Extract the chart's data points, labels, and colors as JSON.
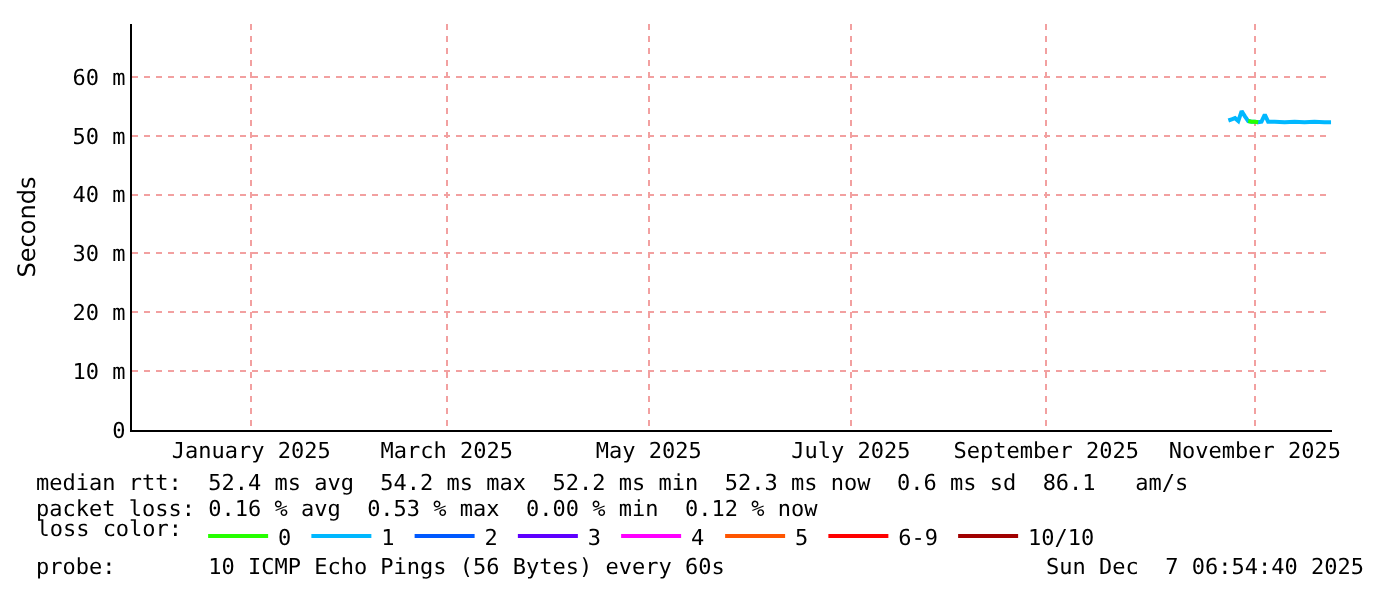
{
  "chart_data": {
    "type": "line",
    "ylabel": "Seconds",
    "xlim": [
      "2024-12-10",
      "2025-12-07T06:54"
    ],
    "xticks": [
      {
        "value": "2025-01-15",
        "label": "January 2025"
      },
      {
        "value": "2025-03-15",
        "label": "March 2025"
      },
      {
        "value": "2025-05-15",
        "label": "May 2025"
      },
      {
        "value": "2025-07-15",
        "label": "July 2025"
      },
      {
        "value": "2025-09-12",
        "label": "September 2025"
      },
      {
        "value": "2025-11-14",
        "label": "November 2025"
      }
    ],
    "ylim": [
      0,
      69
    ],
    "yticks": [
      0,
      {
        "value": 10,
        "label": "10 m"
      },
      {
        "value": 20,
        "label": "20 m"
      },
      {
        "value": 30,
        "label": "30 m"
      },
      {
        "value": 40,
        "label": "40 m"
      },
      {
        "value": 50,
        "label": "50 m"
      },
      {
        "value": 60,
        "label": "60 m"
      }
    ],
    "grid": true,
    "legend": "bottom",
    "legend_title": "loss color:",
    "marker": "none",
    "line_style": "solid",
    "series": [
      {
        "name": "0",
        "color": "#26ff00",
        "x": [
          "2025-11-12",
          "2025-11-13",
          "2025-11-14",
          "2025-11-15"
        ],
        "values": [
          52.5,
          52.4,
          52.4,
          52.3
        ]
      },
      {
        "name": "1",
        "color": "#00b8ff",
        "x": [
          "2025-11-06",
          "2025-11-07",
          "2025-11-08",
          "2025-11-09",
          "2025-11-10",
          "2025-11-11",
          "2025-11-12",
          "2025-11-13",
          "2025-11-14",
          "2025-11-15",
          "2025-11-16",
          "2025-11-17",
          "2025-11-18",
          "2025-11-20",
          "2025-11-23",
          "2025-11-26",
          "2025-11-29",
          "2025-12-02",
          "2025-12-05",
          "2025-12-07"
        ],
        "values": [
          52.6,
          52.8,
          53.0,
          52.5,
          54.2,
          53.3,
          52.5,
          52.4,
          52.4,
          52.3,
          52.4,
          53.6,
          52.4,
          52.4,
          52.3,
          52.4,
          52.3,
          52.4,
          52.3,
          52.3
        ]
      },
      {
        "name": "2",
        "color": "#0059ff"
      },
      {
        "name": "3",
        "color": "#5e00ff"
      },
      {
        "name": "4",
        "color": "#ff00ff"
      },
      {
        "name": "5",
        "color": "#ff5500"
      },
      {
        "name": "6-9",
        "color": "#ff0000"
      },
      {
        "name": "10/10",
        "color": "#a10000"
      }
    ],
    "annotations": [
      "median rtt:  52.4 ms avg  54.2 ms max  52.2 ms min  52.3 ms now  0.6 ms sd  86.1   am/s",
      "packet loss: 0.16 % avg  0.53 % max  0.00 % min  0.12 % now",
      "probe:       10 ICMP Echo Pings (56 Bytes) every 60s",
      "Sun Dec  7 06:54:40 2025"
    ]
  }
}
